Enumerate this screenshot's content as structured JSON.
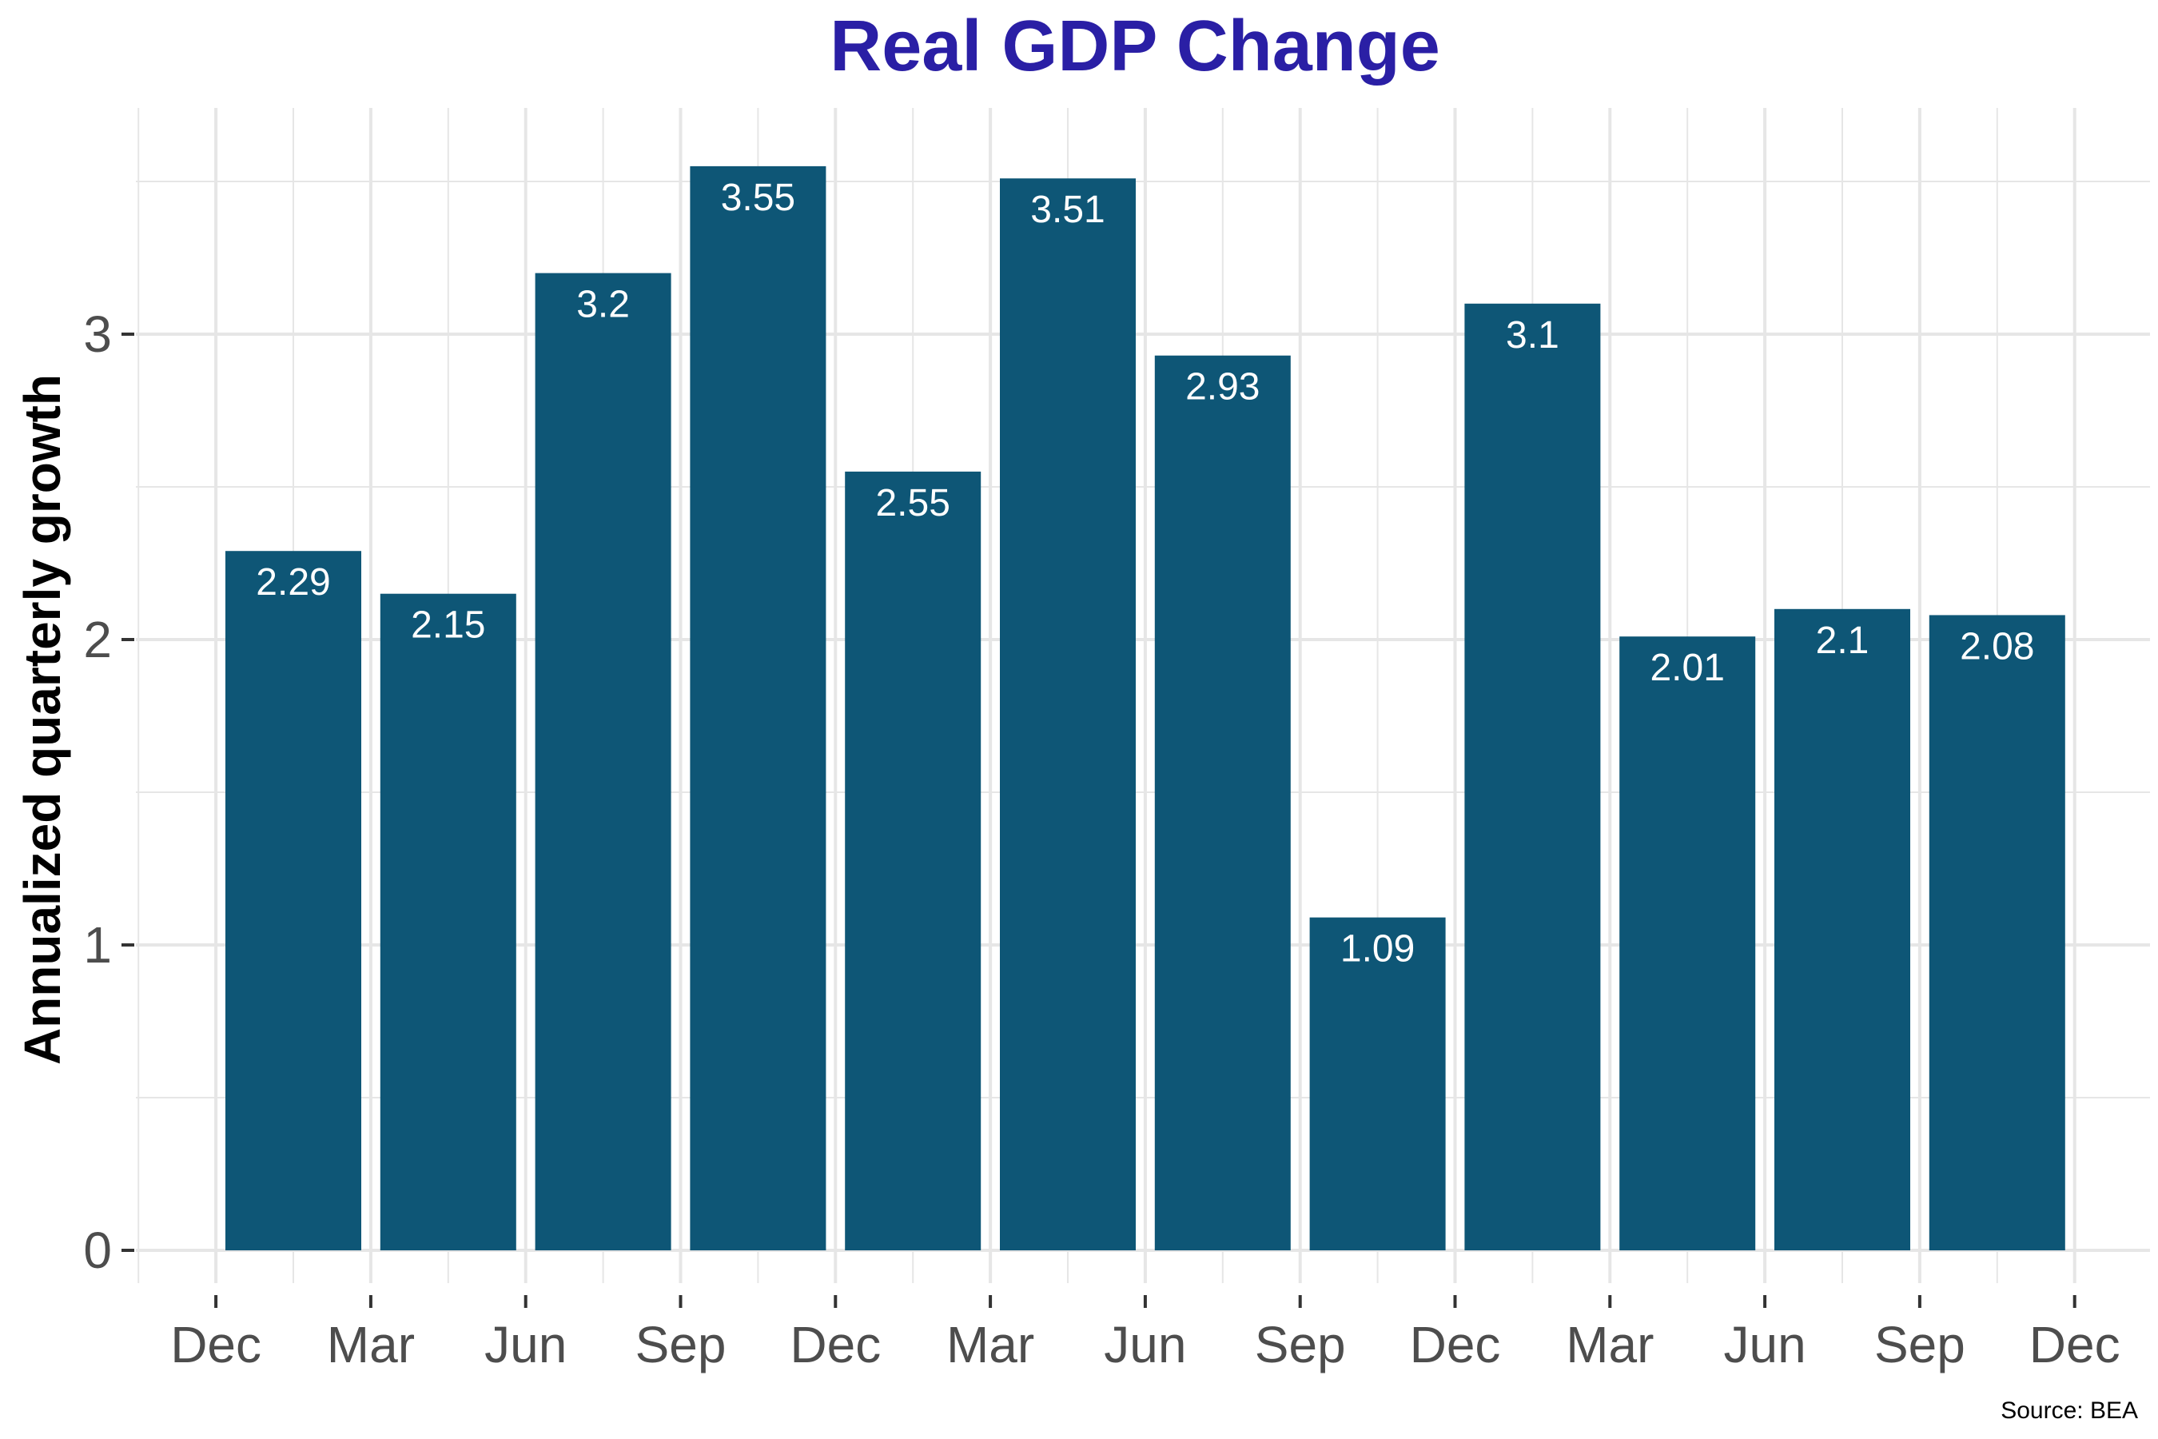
{
  "chart_data": {
    "type": "bar",
    "title": "Real GDP Change",
    "ylabel": "Annualized quarterly growth",
    "xlabel": "",
    "caption": "Source: BEA",
    "ylim": [
      -0.08,
      3.75
    ],
    "y_ticks": [
      0,
      1,
      2,
      3
    ],
    "x_tick_labels": [
      "Dec",
      "Mar",
      "Jun",
      "Sep",
      "Dec",
      "Mar",
      "Jun",
      "Sep",
      "Dec",
      "Mar",
      "Jun",
      "Sep",
      "Dec"
    ],
    "values": [
      2.29,
      2.15,
      3.2,
      3.55,
      2.55,
      3.51,
      2.93,
      1.09,
      3.1,
      2.01,
      2.1,
      2.08
    ],
    "grid": true,
    "legend": "none",
    "colors": {
      "bar": "#0e5676",
      "title": "#2a1fa5",
      "grid": "#e6e6e6",
      "axis_text": "#4d4d4d",
      "bar_label": "#ffffff"
    }
  }
}
